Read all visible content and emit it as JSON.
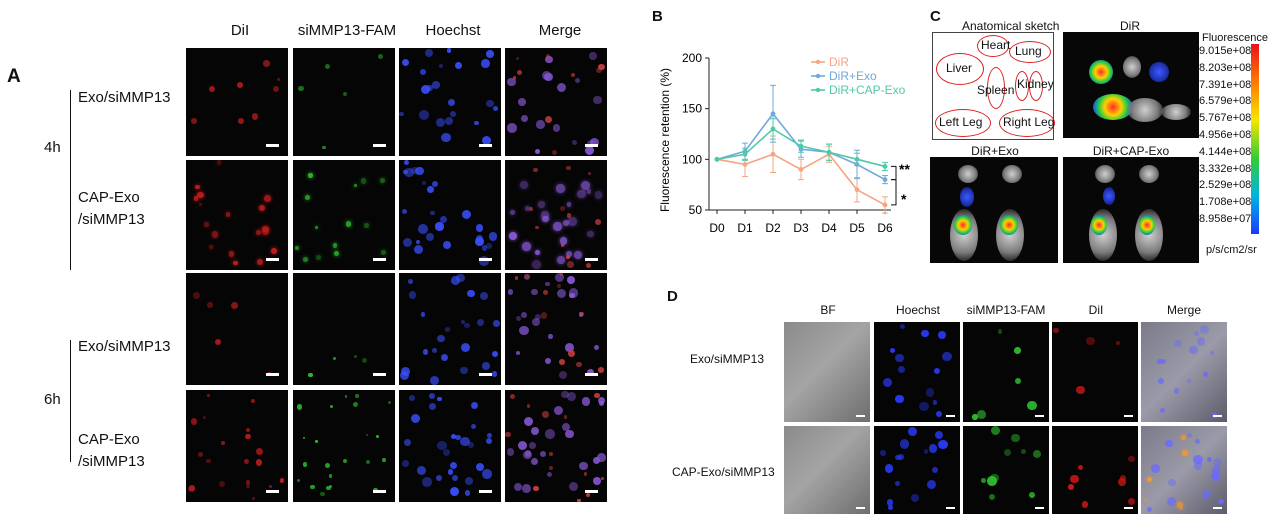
{
  "panel_a": {
    "label": "A",
    "columns": [
      "DiI",
      "siMMP13-FAM",
      "Hoechst",
      "Merge"
    ],
    "group_4h": "4h",
    "group_6h": "6h",
    "row_exo": "Exo/siMMP13",
    "row_cap_l1": "CAP-Exo",
    "row_cap_l2": "/siMMP13"
  },
  "panel_b": {
    "label": "B",
    "ylabel": "Fluorescence retention (%)",
    "significance": [
      "**",
      "*"
    ],
    "colors": {
      "DiR": "#f4a582",
      "DiR+Exo": "#6fa8dc",
      "DiR+CAP-Exo": "#4fc9a8"
    }
  },
  "chart_data": {
    "type": "line",
    "x": [
      "D0",
      "D1",
      "D2",
      "D3",
      "D4",
      "D5",
      "D6"
    ],
    "ylim": [
      50,
      200
    ],
    "yticks": [
      50,
      100,
      150,
      200
    ],
    "xlabel": "",
    "ylabel": "Fluorescence retention (%)",
    "legend_position": "top-right",
    "series": [
      {
        "name": "DiR",
        "values": [
          100,
          95,
          105,
          90,
          105,
          70,
          55
        ],
        "err": [
          0,
          12,
          18,
          10,
          8,
          12,
          8
        ]
      },
      {
        "name": "DiR+Exo",
        "values": [
          100,
          108,
          145,
          110,
          107,
          95,
          80
        ],
        "err": [
          0,
          8,
          28,
          8,
          8,
          14,
          4
        ]
      },
      {
        "name": "DiR+CAP-Exo",
        "values": [
          100,
          105,
          130,
          113,
          107,
          100,
          93
        ],
        "err": [
          0,
          6,
          10,
          6,
          8,
          6,
          4
        ]
      }
    ]
  },
  "panel_c": {
    "label": "C",
    "sketch_title": "Anatomical sketch",
    "organs": [
      "Heart",
      "Lung",
      "Liver",
      "Spleen",
      "Kidney",
      "Left Leg",
      "Right Leg"
    ],
    "img_dir": "DiR",
    "img_exo": "DiR+Exo",
    "img_cap": "DiR+CAP-Exo",
    "colorbar_title": "Fluorescence",
    "colorbar_values": [
      "9.015e+08",
      "8.203e+08",
      "7.391e+08",
      "6.579e+08",
      "5.767e+08",
      "4.956e+08",
      "4.144e+08",
      "3.332e+08",
      "2.529e+08",
      "1.708e+08",
      "8.958e+07"
    ],
    "colorbar_unit": "p/s/cm2/sr"
  },
  "panel_d": {
    "label": "D",
    "columns": [
      "BF",
      "Hoechst",
      "siMMP13-FAM",
      "DiI",
      "Merge"
    ],
    "rows": [
      "Exo/siMMP13",
      "CAP-Exo/siMMP13"
    ]
  }
}
